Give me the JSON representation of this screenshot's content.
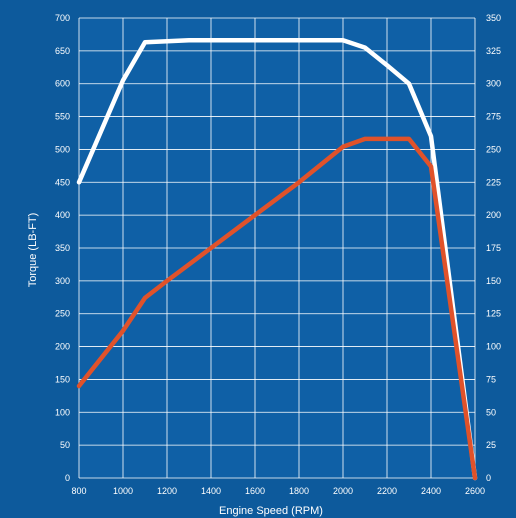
{
  "chart_data": {
    "type": "line",
    "xlabel": "Engine Speed (RPM)",
    "ylabel_left": "Torque (LB-FT)",
    "ylabel_right": "",
    "xlim": [
      800,
      2600
    ],
    "ylim_left": [
      0,
      700
    ],
    "ylim_right": [
      0,
      350
    ],
    "x_ticks": [
      800,
      1000,
      1200,
      1400,
      1600,
      1800,
      2000,
      2200,
      2400,
      2600
    ],
    "y_ticks_left": [
      0,
      50,
      100,
      150,
      200,
      250,
      300,
      350,
      400,
      450,
      500,
      550,
      600,
      650,
      700
    ],
    "y_ticks_right": [
      0,
      25,
      50,
      75,
      100,
      125,
      150,
      175,
      200,
      225,
      250,
      275,
      300,
      325,
      350
    ],
    "grid": true,
    "series": [
      {
        "axis": "left",
        "color": "#ffffff",
        "x": [
          800,
          1000,
          1100,
          1300,
          1500,
          1700,
          1900,
          2000,
          2100,
          2200,
          2300,
          2400,
          2600
        ],
        "values": [
          450,
          605,
          663,
          666,
          666,
          666,
          666,
          666,
          655,
          628,
          600,
          520,
          0
        ]
      },
      {
        "axis": "right",
        "color": "#e0522a",
        "x": [
          800,
          1000,
          1100,
          1200,
          1400,
          1600,
          1800,
          2000,
          2100,
          2200,
          2300,
          2400,
          2600
        ],
        "values": [
          70,
          112,
          137,
          150,
          175,
          200,
          225,
          252,
          258,
          258,
          258,
          237,
          0
        ]
      }
    ]
  }
}
